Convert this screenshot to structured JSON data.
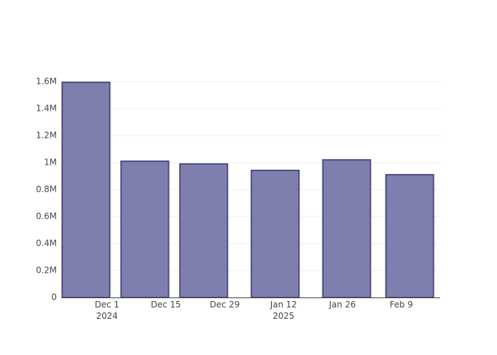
{
  "chart_data": {
    "type": "bar",
    "x": [
      "2024-11-26",
      "2024-12-10",
      "2024-12-24",
      "2025-01-10",
      "2025-01-27",
      "2025-02-11"
    ],
    "values": [
      1595000,
      1010000,
      990000,
      942000,
      1020000,
      910000
    ],
    "color": "#7f7faf",
    "edge_color": "#4b4b83",
    "xlim": [
      "2024-11-20T10:00",
      "2025-02-18T06:00"
    ],
    "xticks": [
      {
        "value": "2024-12-01",
        "label": "Dec 1\n2024"
      },
      {
        "value": "2024-12-15",
        "label": "Dec 15"
      },
      {
        "value": "2024-12-29",
        "label": "Dec 29"
      },
      {
        "value": "2025-01-12",
        "label": "Jan 12\n2025"
      },
      {
        "value": "2025-01-26",
        "label": "Jan 26"
      },
      {
        "value": "2025-02-09",
        "label": "Feb 9"
      }
    ],
    "ylim": [
      0,
      1600000
    ],
    "yticks": [
      0,
      {
        "value": 200000,
        "label": "0.2M"
      },
      {
        "value": 400000,
        "label": "0.4M"
      },
      {
        "value": 600000,
        "label": "0.6M"
      },
      {
        "value": 800000,
        "label": "0.8M"
      },
      {
        "value": 1000000,
        "label": "1M"
      },
      {
        "value": 1200000,
        "label": "1.2M"
      },
      {
        "value": 1400000,
        "label": "1.4M"
      },
      {
        "value": 1600000,
        "label": "1.6M"
      }
    ],
    "grid": true
  }
}
